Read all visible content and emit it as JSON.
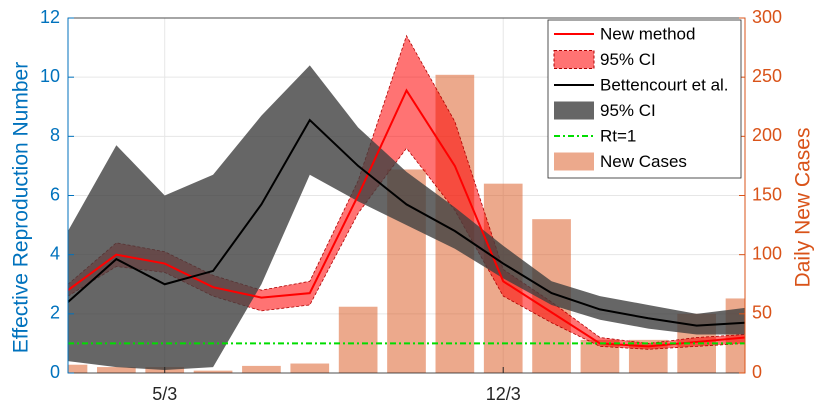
{
  "chart_data": {
    "type": "combo",
    "x": [
      3,
      4,
      5,
      6,
      7,
      8,
      9,
      10,
      11,
      12,
      13,
      14,
      15,
      16,
      17
    ],
    "xlim": [
      3,
      17
    ],
    "xticks": [
      {
        "value": 5,
        "label": "5/3"
      },
      {
        "value": 12,
        "label": "12/3"
      }
    ],
    "ylim": [
      0,
      12
    ],
    "yticks": [
      0,
      2,
      4,
      6,
      8,
      10,
      12
    ],
    "y2lim": [
      0,
      300
    ],
    "y2ticks": [
      0,
      50,
      100,
      150,
      200,
      250,
      300
    ],
    "y_label": "Effective Reproduction Number",
    "y2_label": "Daily New Cases",
    "y_color": "#0072bd",
    "y2_color": "#d95319",
    "grid": true,
    "legend_position": "upper-right",
    "series": [
      {
        "name": "New method",
        "type": "line",
        "color": "#ff0000",
        "values": [
          2.8,
          4.0,
          3.7,
          2.9,
          2.55,
          2.7,
          6.0,
          9.55,
          7.0,
          3.1,
          2.05,
          1.0,
          0.9,
          1.05,
          1.2
        ]
      },
      {
        "name": "95% CI",
        "type": "band",
        "color": "#ff0000",
        "lower": [
          2.6,
          3.6,
          3.4,
          2.6,
          2.1,
          2.3,
          5.4,
          7.6,
          5.5,
          2.6,
          1.7,
          0.9,
          0.8,
          0.9,
          1.0
        ],
        "upper": [
          3.0,
          4.4,
          4.1,
          3.3,
          2.8,
          3.1,
          6.5,
          11.4,
          8.5,
          3.5,
          2.4,
          1.2,
          1.0,
          1.2,
          1.3
        ]
      },
      {
        "name": "Bettencourt et al.",
        "type": "line",
        "color": "#000000",
        "values": [
          2.4,
          3.85,
          3.0,
          3.45,
          5.7,
          8.55,
          7.0,
          5.7,
          4.8,
          3.7,
          2.7,
          2.15,
          1.85,
          1.6,
          1.7
        ]
      },
      {
        "name": "95% CI",
        "type": "band",
        "color": "#404040",
        "lower": [
          0.4,
          0.2,
          0.1,
          0.2,
          3.0,
          6.7,
          5.8,
          5.0,
          4.2,
          3.2,
          2.3,
          1.8,
          1.5,
          1.3,
          1.3
        ],
        "upper": [
          4.8,
          7.7,
          6.0,
          6.7,
          8.7,
          10.4,
          8.3,
          6.8,
          5.6,
          4.3,
          3.1,
          2.6,
          2.3,
          2.0,
          2.2
        ]
      },
      {
        "name": "Rt=1",
        "type": "line",
        "dash": true,
        "color": "#00dd00",
        "values": [
          1,
          1,
          1,
          1,
          1,
          1,
          1,
          1,
          1,
          1,
          1,
          1,
          1,
          1,
          1
        ]
      },
      {
        "name": "New Cases",
        "type": "bar",
        "axis": "y2",
        "color": "#d95319",
        "values": [
          7,
          5,
          5,
          2,
          6,
          8,
          56,
          172,
          252,
          160,
          130,
          28,
          28,
          50,
          63
        ]
      }
    ]
  }
}
